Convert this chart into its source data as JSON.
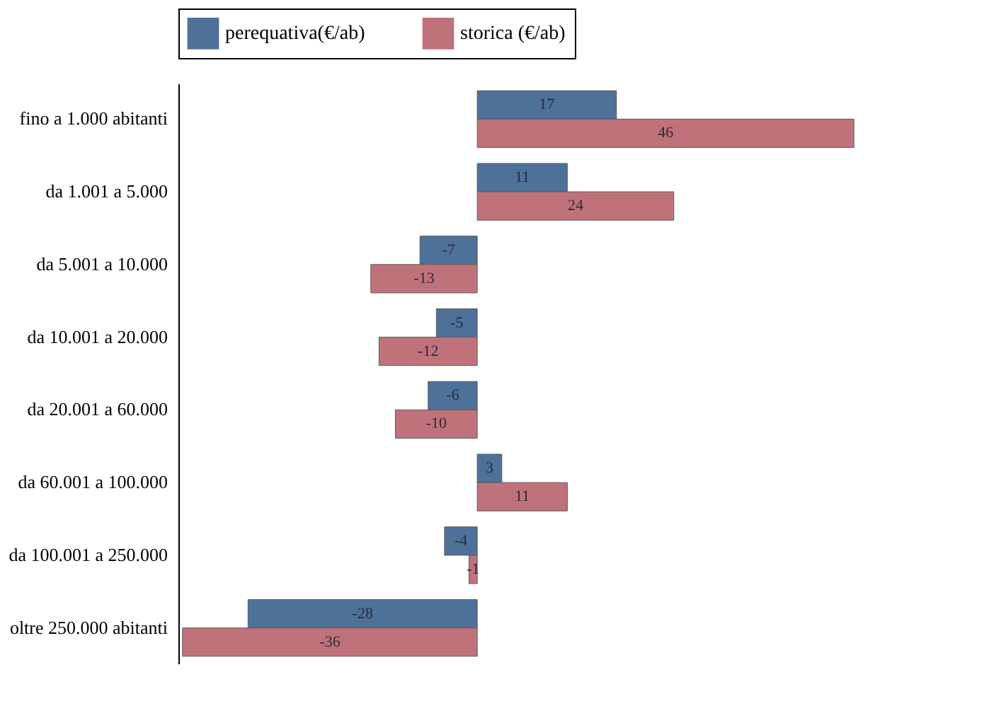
{
  "chart_data": {
    "type": "bar",
    "orientation": "horizontal",
    "categories": [
      "fino a 1.000 abitanti",
      "da 1.001 a 5.000",
      "da 5.001 a 10.000",
      "da 10.001 a 20.000",
      "da 20.001 a 60.000",
      "da 60.001 a 100.000",
      "da 100.001 a 250.000",
      "oltre 250.000 abitanti"
    ],
    "series": [
      {
        "name": "perequativa(€/ab)",
        "color": "#4e7199",
        "values": [
          17,
          11,
          -7,
          -5,
          -6,
          3,
          -4,
          -28
        ]
      },
      {
        "name": "storica (€/ab)",
        "color": "#c0727a",
        "values": [
          46,
          24,
          -13,
          -12,
          -10,
          11,
          -1,
          -36
        ]
      }
    ],
    "xlim": [
      -36.5,
      46.5
    ],
    "data_labels": true,
    "tick_labels": "y",
    "legend": "top"
  }
}
